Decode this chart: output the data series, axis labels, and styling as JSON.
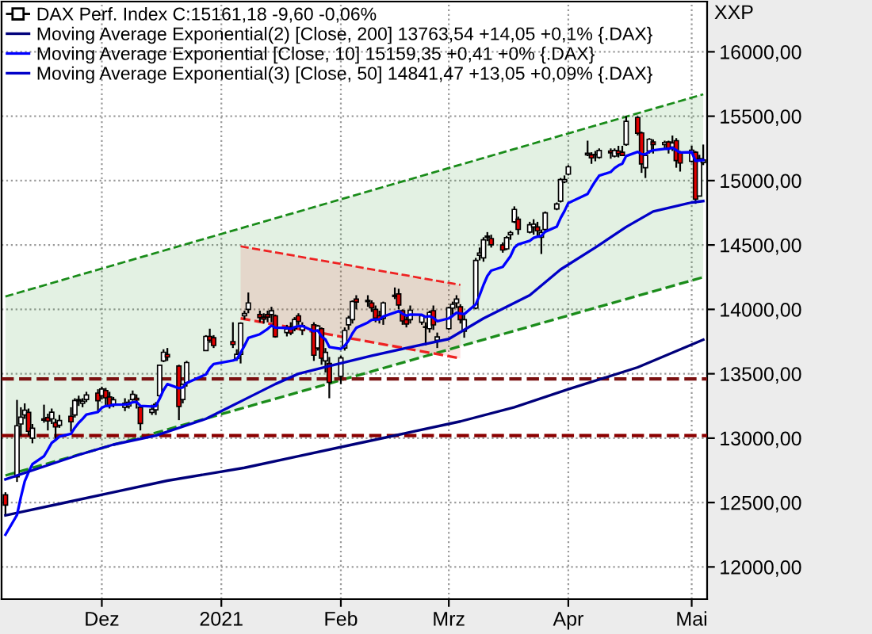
{
  "chart_data": {
    "type": "candlestick",
    "x": [
      "2020-11-06",
      "2020-11-09",
      "2020-11-10",
      "2020-11-11",
      "2020-11-12",
      "2020-11-13",
      "2020-11-16",
      "2020-11-17",
      "2020-11-18",
      "2020-11-19",
      "2020-11-20",
      "2020-11-23",
      "2020-11-24",
      "2020-11-25",
      "2020-11-26",
      "2020-11-27",
      "2020-11-30",
      "2020-12-01",
      "2020-12-02",
      "2020-12-03",
      "2020-12-04",
      "2020-12-07",
      "2020-12-08",
      "2020-12-09",
      "2020-12-10",
      "2020-12-11",
      "2020-12-14",
      "2020-12-15",
      "2020-12-16",
      "2020-12-17",
      "2020-12-18",
      "2020-12-21",
      "2020-12-22",
      "2020-12-23",
      "2020-12-28",
      "2020-12-29",
      "2020-12-30",
      "2021-01-04",
      "2021-01-05",
      "2021-01-06",
      "2021-01-07",
      "2021-01-08",
      "2021-01-11",
      "2021-01-12",
      "2021-01-13",
      "2021-01-14",
      "2021-01-15",
      "2021-01-18",
      "2021-01-19",
      "2021-01-20",
      "2021-01-21",
      "2021-01-22",
      "2021-01-25",
      "2021-01-26",
      "2021-01-27",
      "2021-01-28",
      "2021-01-29",
      "2021-02-01",
      "2021-02-02",
      "2021-02-03",
      "2021-02-04",
      "2021-02-05",
      "2021-02-08",
      "2021-02-09",
      "2021-02-10",
      "2021-02-11",
      "2021-02-12",
      "2021-02-15",
      "2021-02-16",
      "2021-02-17",
      "2021-02-18",
      "2021-02-19",
      "2021-02-22",
      "2021-02-23",
      "2021-02-24",
      "2021-02-25",
      "2021-02-26",
      "2021-03-01",
      "2021-03-02",
      "2021-03-03",
      "2021-03-04",
      "2021-03-05",
      "2021-03-08",
      "2021-03-09",
      "2021-03-10",
      "2021-03-11",
      "2021-03-12",
      "2021-03-15",
      "2021-03-16",
      "2021-03-17",
      "2021-03-18",
      "2021-03-19",
      "2021-03-22",
      "2021-03-23",
      "2021-03-24",
      "2021-03-25",
      "2021-03-26",
      "2021-03-29",
      "2021-03-30",
      "2021-03-31",
      "2021-04-01",
      "2021-04-06",
      "2021-04-07",
      "2021-04-08",
      "2021-04-09",
      "2021-04-12",
      "2021-04-13",
      "2021-04-14",
      "2021-04-15",
      "2021-04-16",
      "2021-04-19",
      "2021-04-20",
      "2021-04-21",
      "2021-04-22",
      "2021-04-23",
      "2021-04-26",
      "2021-04-27",
      "2021-04-28",
      "2021-04-29",
      "2021-04-30",
      "2021-05-03",
      "2021-05-04",
      "2021-05-05",
      "2021-05-06"
    ],
    "series": [
      {
        "name": "DAX Perf. Index C:15161,18 -9,60 -0,06%",
        "colors": [
          "#e00000",
          "#ffffff",
          "#ffffff",
          "#ffffff",
          "#e00000",
          "#ffffff",
          "#e00000",
          "#e00000",
          "#ffffff",
          "#e00000",
          "#ffffff",
          "#e00000",
          "#ffffff",
          "#e00000",
          "#ffffff",
          "#ffffff",
          "#e00000",
          "#ffffff",
          "#e00000",
          "#e00000",
          "#ffffff",
          "#ffffff",
          "#ffffff",
          "#ffffff",
          "#e00000",
          "#e00000",
          "#ffffff",
          "#ffffff",
          "#ffffff",
          "#ffffff",
          "#e00000",
          "#e00000",
          "#ffffff",
          "#ffffff",
          "#ffffff",
          "#e00000",
          "#e00000",
          "#e00000",
          "#ffffff",
          "#ffffff",
          "#ffffff",
          "#ffffff",
          "#e00000",
          "#e00000",
          "#e00000",
          "#ffffff",
          "#e00000",
          "#ffffff",
          "#e00000",
          "#ffffff",
          "#e00000",
          "#ffffff",
          "#e00000",
          "#ffffff",
          "#e00000",
          "#ffffff",
          "#e00000",
          "#ffffff",
          "#ffffff",
          "#ffffff",
          "#ffffff",
          "#e00000",
          "#e00000",
          "#e00000",
          "#e00000",
          "#e00000",
          "#ffffff",
          "#ffffff",
          "#e00000",
          "#e00000",
          "#e00000",
          "#ffffff",
          "#ffffff",
          "#ffffff",
          "#ffffff",
          "#e00000",
          "#ffffff",
          "#ffffff",
          "#ffffff",
          "#ffffff",
          "#e00000",
          "#ffffff",
          "#ffffff",
          "#ffffff",
          "#ffffff",
          "#ffffff",
          "#e00000",
          "#e00000",
          "#ffffff",
          "#ffffff",
          "#ffffff",
          "#e00000",
          "#ffffff",
          "#ffffff",
          "#e00000",
          "#ffffff",
          "#ffffff",
          "#ffffff",
          "#ffffff",
          "#ffffff",
          "#ffffff",
          "#ffffff",
          "#e00000",
          "#ffffff",
          "#ffffff",
          "#e00000",
          "#ffffff",
          "#e00000",
          "#e00000",
          "#ffffff",
          "#e00000",
          "#e00000",
          "#ffffff",
          "#ffffff",
          "#e00000",
          "#ffffff",
          "#e00000",
          "#ffffff",
          "#e00000",
          "#e00000",
          "#ffffff",
          "#e00000",
          "#ffffff",
          "#ffffff"
        ],
        "ohlc": [
          [
            12560,
            12580,
            12400,
            12480
          ],
          [
            12700,
            13297,
            12660,
            13096
          ],
          [
            13110,
            13240,
            13020,
            13163
          ],
          [
            13180,
            13270,
            13150,
            13217
          ],
          [
            13200,
            13230,
            13020,
            13053
          ],
          [
            13000,
            13110,
            12960,
            13077
          ],
          [
            13150,
            13260,
            13120,
            13139
          ],
          [
            13160,
            13190,
            13060,
            13133
          ],
          [
            13150,
            13230,
            13110,
            13202
          ],
          [
            13120,
            13150,
            12990,
            13087
          ],
          [
            13100,
            13180,
            13080,
            13137
          ],
          [
            13170,
            13240,
            13050,
            13127
          ],
          [
            13180,
            13310,
            13160,
            13292
          ],
          [
            13300,
            13330,
            13250,
            13290
          ],
          [
            13270,
            13310,
            13240,
            13286
          ],
          [
            13300,
            13360,
            13280,
            13335
          ],
          [
            13350,
            13380,
            13200,
            13291
          ],
          [
            13330,
            13400,
            13300,
            13382
          ],
          [
            13370,
            13390,
            13250,
            13313
          ],
          [
            13320,
            13360,
            13230,
            13253
          ],
          [
            13260,
            13320,
            13240,
            13298
          ],
          [
            13240,
            13310,
            13210,
            13271
          ],
          [
            13250,
            13300,
            13230,
            13278
          ],
          [
            13300,
            13370,
            13290,
            13340
          ],
          [
            13310,
            13340,
            13230,
            13296
          ],
          [
            13240,
            13250,
            13060,
            13114
          ],
          [
            13200,
            13260,
            13180,
            13223
          ],
          [
            13220,
            13280,
            13180,
            13263
          ],
          [
            13330,
            13570,
            13320,
            13566
          ],
          [
            13600,
            13690,
            13590,
            13667
          ],
          [
            13650,
            13700,
            13600,
            13630
          ],
          [
            13560,
            13570,
            13140,
            13246
          ],
          [
            13300,
            13420,
            13270,
            13418
          ],
          [
            13430,
            13600,
            13400,
            13587
          ],
          [
            13680,
            13800,
            13680,
            13790
          ],
          [
            13790,
            13850,
            13740,
            13761
          ],
          [
            13780,
            13800,
            13700,
            13719
          ],
          [
            13750,
            13900,
            13700,
            13727
          ],
          [
            13620,
            13690,
            13600,
            13651
          ],
          [
            13650,
            13900,
            13580,
            13892
          ],
          [
            13950,
            13990,
            13920,
            13968
          ],
          [
            14000,
            14131,
            13970,
            14050
          ],
          [
            13960,
            13990,
            13900,
            13937
          ],
          [
            13940,
            13970,
            13890,
            13925
          ],
          [
            13960,
            13990,
            13900,
            13940
          ],
          [
            13960,
            14020,
            13900,
            13989
          ],
          [
            13950,
            13960,
            13780,
            13788
          ],
          [
            13820,
            13880,
            13790,
            13848
          ],
          [
            13860,
            13900,
            13800,
            13816
          ],
          [
            13850,
            13940,
            13830,
            13922
          ],
          [
            13950,
            13970,
            13880,
            13907
          ],
          [
            13840,
            13900,
            13800,
            13874
          ],
          [
            13880,
            13900,
            13600,
            13644
          ],
          [
            13700,
            13880,
            13680,
            13871
          ],
          [
            13850,
            13860,
            13570,
            13621
          ],
          [
            13600,
            13700,
            13510,
            13666
          ],
          [
            13580,
            13630,
            13310,
            13433
          ],
          [
            13480,
            13640,
            13420,
            13623
          ],
          [
            13700,
            13860,
            13680,
            13836
          ],
          [
            13880,
            13950,
            13840,
            13933
          ],
          [
            13920,
            14070,
            13890,
            14061
          ],
          [
            14080,
            14110,
            14000,
            14057
          ],
          [
            14070,
            14110,
            14020,
            14060
          ],
          [
            14050,
            14070,
            13980,
            14012
          ],
          [
            14000,
            14030,
            13900,
            13932
          ],
          [
            13950,
            13990,
            13890,
            13921
          ],
          [
            13930,
            14060,
            13880,
            14050
          ],
          [
            14100,
            14170,
            14080,
            14110
          ],
          [
            14120,
            14160,
            14000,
            14034
          ],
          [
            13990,
            14000,
            13880,
            13910
          ],
          [
            13920,
            13960,
            13860,
            13886
          ],
          [
            13920,
            14030,
            13890,
            13993
          ],
          [
            13900,
            13960,
            13880,
            13950
          ],
          [
            13860,
            13900,
            13720,
            13865
          ],
          [
            13850,
            13990,
            13820,
            13976
          ],
          [
            13990,
            14030,
            13840,
            13879
          ],
          [
            13760,
            13820,
            13700,
            13786
          ],
          [
            13850,
            14020,
            13840,
            14012
          ],
          [
            14010,
            14060,
            13960,
            14039
          ],
          [
            14050,
            14110,
            14010,
            14080
          ],
          [
            14020,
            14040,
            13890,
            13920
          ],
          [
            13830,
            13970,
            13780,
            13920
          ],
          [
            14010,
            14400,
            14000,
            14380
          ],
          [
            14420,
            14480,
            14380,
            14437
          ],
          [
            14400,
            14560,
            14370,
            14540
          ],
          [
            14560,
            14600,
            14530,
            14569
          ],
          [
            14550,
            14580,
            14480,
            14502
          ],
          [
            14500,
            14520,
            14440,
            14461
          ],
          [
            14470,
            14570,
            14460,
            14557
          ],
          [
            14580,
            14610,
            14540,
            14596
          ],
          [
            14680,
            14800,
            14670,
            14776
          ],
          [
            14700,
            14720,
            14580,
            14621
          ],
          [
            14600,
            14680,
            14590,
            14657
          ],
          [
            14640,
            14700,
            14580,
            14662
          ],
          [
            14640,
            14680,
            14560,
            14610
          ],
          [
            14560,
            14620,
            14430,
            14597
          ],
          [
            14620,
            14760,
            14600,
            14749
          ],
          [
            14780,
            14830,
            14770,
            14818
          ],
          [
            14840,
            15020,
            14830,
            15008
          ],
          [
            14990,
            15040,
            14980,
            15008
          ],
          [
            15050,
            15120,
            15040,
            15107
          ],
          [
            15200,
            15310,
            15190,
            15212
          ],
          [
            15200,
            15220,
            15130,
            15176
          ],
          [
            15200,
            15230,
            15150,
            15203
          ],
          [
            15180,
            15250,
            15170,
            15234
          ],
          [
            15230,
            15250,
            15170,
            15215
          ],
          [
            15190,
            15250,
            15180,
            15234
          ],
          [
            15230,
            15270,
            15180,
            15209
          ],
          [
            15220,
            15270,
            15190,
            15195
          ],
          [
            15280,
            15501,
            15270,
            15460
          ],
          [
            15490,
            15500,
            15350,
            15368
          ],
          [
            15370,
            15380,
            15060,
            15129
          ],
          [
            15100,
            15210,
            15020,
            15195
          ],
          [
            15230,
            15330,
            15210,
            15321
          ],
          [
            15300,
            15320,
            15210,
            15280
          ],
          [
            15280,
            15310,
            15250,
            15296
          ],
          [
            15300,
            15310,
            15210,
            15249
          ],
          [
            15260,
            15350,
            15230,
            15292
          ],
          [
            15310,
            15330,
            15100,
            15155
          ],
          [
            15220,
            15230,
            15070,
            15136
          ],
          [
            15150,
            15270,
            15140,
            15236
          ],
          [
            15220,
            15230,
            14820,
            14856
          ],
          [
            14880,
            15200,
            14880,
            15171
          ],
          [
            15140,
            15280,
            15120,
            15161
          ]
        ]
      },
      {
        "type": "line",
        "name": "Moving Average Exponential(2) [Close, 200] 13763,54 +14,05 +0,1% {.DAX}",
        "color": "#00007a",
        "x": [
          "2020-11-06",
          "2020-11-20",
          "2020-12-04",
          "2020-12-18",
          "2021-01-07",
          "2021-01-21",
          "2021-02-04",
          "2021-02-18",
          "2021-03-04",
          "2021-03-18",
          "2021-04-01",
          "2021-04-19",
          "2021-05-06"
        ],
        "values": [
          12400,
          12490,
          12580,
          12670,
          12770,
          12860,
          12950,
          13040,
          13130,
          13240,
          13380,
          13550,
          13764
        ]
      },
      {
        "type": "line",
        "name": "Moving Average Exponential [Close, 10] 15159,35 +0,41 +0% {.DAX}",
        "color": "#0000ff",
        "values": [
          12250,
          12404,
          12542,
          12665,
          12736,
          12798,
          12860,
          12910,
          12963,
          12986,
          13013,
          13034,
          13081,
          13119,
          13149,
          13183,
          13203,
          13236,
          13250,
          13251,
          13260,
          13262,
          13265,
          13279,
          13282,
          13251,
          13246,
          13249,
          13307,
          13373,
          13420,
          13388,
          13394,
          13429,
          13495,
          13543,
          13575,
          13603,
          13612,
          13663,
          13718,
          13778,
          13807,
          13828,
          13848,
          13874,
          13858,
          13856,
          13849,
          13862,
          13870,
          13871,
          13830,
          13837,
          13789,
          13767,
          13708,
          13693,
          13718,
          13758,
          13813,
          13857,
          13898,
          13919,
          13922,
          13922,
          13945,
          13975,
          13986,
          13966,
          13951,
          13960,
          13958,
          13941,
          13947,
          13935,
          13908,
          13930,
          13950,
          13974,
          13968,
          13963,
          14039,
          14111,
          14190,
          14259,
          14301,
          14330,
          14371,
          14413,
          14479,
          14505,
          14532,
          14555,
          14565,
          14571,
          14603,
          14642,
          14709,
          14763,
          14826,
          14896,
          14947,
          14995,
          15038,
          15067,
          15097,
          15117,
          15131,
          15191,
          15223,
          15206,
          15204,
          15225,
          15235,
          15246,
          15247,
          15255,
          15236,
          15218,
          15221,
          15153,
          15156,
          15159
        ]
      },
      {
        "type": "line",
        "name": "Moving Average Exponential(3) [Close, 50] 14841,47 +13,05 +0,09% {.DAX}",
        "color": "#0000c8",
        "x": [
          "2020-11-06",
          "2020-11-17",
          "2020-11-25",
          "2020-12-04",
          "2020-12-15",
          "2020-12-28",
          "2021-01-07",
          "2021-01-15",
          "2021-01-21",
          "2021-01-29",
          "2021-02-09",
          "2021-02-18",
          "2021-03-01",
          "2021-03-10",
          "2021-03-22",
          "2021-03-30",
          "2021-04-08",
          "2021-04-16",
          "2021-04-23",
          "2021-05-03",
          "2021-05-06"
        ],
        "values": [
          12680,
          12790,
          12870,
          12950,
          13020,
          13150,
          13300,
          13420,
          13500,
          13560,
          13640,
          13700,
          13770,
          13930,
          14110,
          14310,
          14480,
          14640,
          14760,
          14830,
          14841
        ]
      },
      {
        "type": "line",
        "color": "#1a8c1a",
        "line_style": "dashed",
        "x": [
          "2020-11-06",
          "2021-05-06"
        ],
        "values": [
          14100,
          15670
        ],
        "lower": [
          12710,
          14250
        ],
        "upper": [
          14100,
          15670
        ]
      },
      {
        "type": "line",
        "color": "#1a8c1a",
        "line_style": "dashed",
        "x": [
          "2020-11-06",
          "2021-05-06"
        ],
        "values": [
          12710,
          14250
        ]
      },
      {
        "type": "line",
        "color": "#ee2222",
        "line_style": "dashed",
        "x": [
          "2021-01-06",
          "2021-03-04"
        ],
        "values": [
          14490,
          14190
        ],
        "lower": [
          13930,
          13620
        ],
        "upper": [
          14490,
          14190
        ]
      },
      {
        "type": "line",
        "color": "#ee2222",
        "line_style": "dashed",
        "x": [
          "2021-01-06",
          "2021-03-04"
        ],
        "values": [
          13930,
          13620
        ]
      }
    ],
    "ylabel": "XXP",
    "ylim": [
      11750,
      16390
    ],
    "yticks": [
      {
        "value": 12000,
        "label": "12000,00"
      },
      {
        "value": 12500,
        "label": "12500,00"
      },
      {
        "value": 13000,
        "label": "13000,00"
      },
      {
        "value": 13500,
        "label": "13500,00"
      },
      {
        "value": 14000,
        "label": "14000,00"
      },
      {
        "value": 14500,
        "label": "14500,00"
      },
      {
        "value": 15000,
        "label": "15000,00"
      },
      {
        "value": 15500,
        "label": "15500,00"
      },
      {
        "value": 16000,
        "label": "16000,00"
      }
    ],
    "xlim": [
      "2020-11-05",
      "2021-05-07"
    ],
    "xticks": [
      {
        "value": "2020-12-01",
        "label": "Dez"
      },
      {
        "value": "2021-01-01",
        "label": "2021"
      },
      {
        "value": "2021-02-01",
        "label": "Feb"
      },
      {
        "value": "2021-03-01",
        "label": "Mrz"
      },
      {
        "value": "2021-04-01",
        "label": "Apr"
      },
      {
        "value": "2021-05-03",
        "label": "Mai"
      }
    ],
    "ref_lines": [
      {
        "axis": "y",
        "value": 13460,
        "color": "#7a1010",
        "line_style": "dashed"
      },
      {
        "axis": "y",
        "value": 13020,
        "color": "#8b0000",
        "line_style": "dashed"
      }
    ],
    "grid": true,
    "legend": "top left"
  }
}
